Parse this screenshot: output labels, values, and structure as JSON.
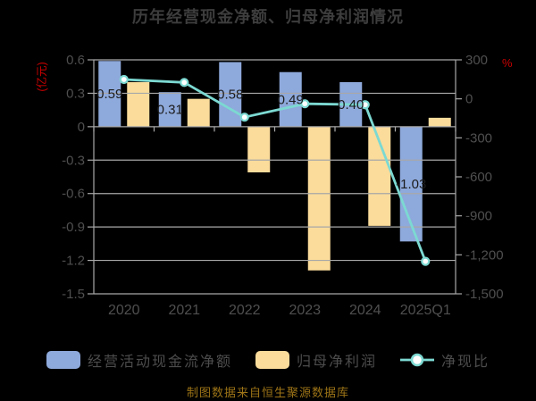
{
  "title": "历年经营现金净额、归母净利润情况",
  "source_note": "制图数据来自恒生聚源数据库",
  "colors": {
    "background": "#000000",
    "cash_bar": "#8EA9DB",
    "profit_bar": "#FBDC9B",
    "ratio_line": "#7CD9D2",
    "marker_fill": "#FFFFFF",
    "grid_line": "#A8A8A8",
    "axis_text": "#4F4F4F",
    "bar_label": "#1C1C1C",
    "unit_text": "#CC0000",
    "title_text": "#3D3D3D",
    "legend_text": "#4C4C4C",
    "source_text": "#9D7417"
  },
  "legend": [
    {
      "label": "经营活动现金流净额",
      "type": "bar",
      "color_key": "cash_bar"
    },
    {
      "label": "归母净利润",
      "type": "bar",
      "color_key": "profit_bar"
    },
    {
      "label": "净现比",
      "type": "line",
      "color_key": "ratio_line"
    }
  ],
  "chart_data": {
    "type": "bar+line combo",
    "categories": [
      "2020",
      "2021",
      "2022",
      "2023",
      "2024",
      "2025Q1"
    ],
    "series": [
      {
        "name": "经营活动现金流净额",
        "type": "bar",
        "axis": "left",
        "values": [
          0.59,
          0.31,
          0.58,
          0.49,
          0.4,
          -1.03
        ],
        "labels": [
          "0.59",
          "0.31",
          "0.58",
          "0.49",
          "0.40",
          "-1.03"
        ]
      },
      {
        "name": "归母净利润",
        "type": "bar",
        "axis": "left",
        "values": [
          0.4,
          0.25,
          -0.41,
          -1.29,
          -0.89,
          0.08
        ],
        "labels": null
      },
      {
        "name": "净现比",
        "type": "line",
        "axis": "right",
        "values": [
          149,
          126,
          -141,
          -38,
          -45,
          -1250
        ]
      }
    ],
    "left_axis": {
      "unit": "(亿元)",
      "range": [
        -1.5,
        0.6
      ],
      "ticks": [
        0.6,
        0.3,
        0,
        -0.3,
        -0.6,
        -0.9,
        -1.2,
        -1.5
      ],
      "tick_labels": [
        "0.6",
        "0.3",
        "0",
        "-0.3",
        "-0.6",
        "-0.9",
        "-1.2",
        "-1.5"
      ]
    },
    "right_axis": {
      "unit": "%",
      "range": [
        -1500,
        300
      ],
      "ticks": [
        300,
        0,
        -300,
        -600,
        -900,
        -1200,
        -1500
      ],
      "tick_labels": [
        "300",
        "0",
        "-300",
        "-600",
        "-900",
        "-1,200",
        "-1,500"
      ]
    },
    "grid": true,
    "legend_position": "bottom"
  }
}
